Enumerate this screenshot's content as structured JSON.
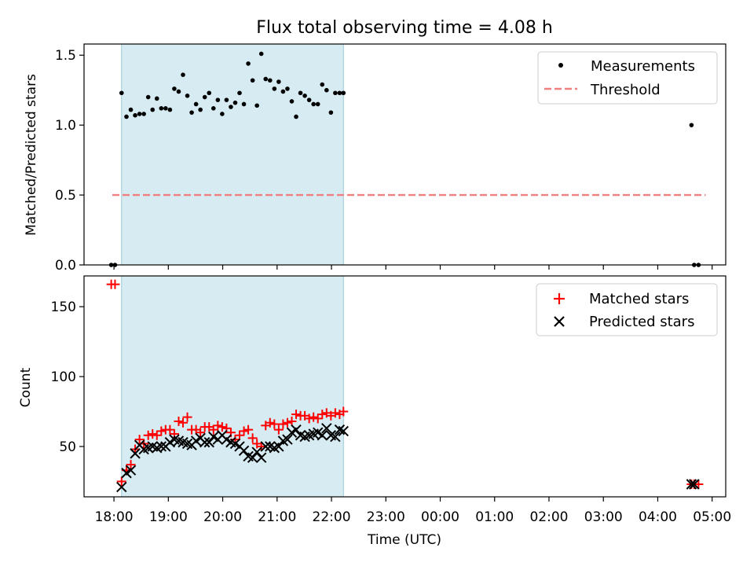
{
  "chart_data": [
    {
      "type": "scatter",
      "title": "Flux total observing time = 4.08 h",
      "ylabel": "Matched/Predicted stars",
      "xlabel": "",
      "x_unit": "hours since 18:00 UTC",
      "xlim": [
        -0.55,
        11.25
      ],
      "ylim": [
        0,
        1.58
      ],
      "yticks": [
        0.0,
        0.5,
        1.0,
        1.5
      ],
      "ytick_labels": [
        "0.0",
        "0.5",
        "1.0",
        "1.5"
      ],
      "xticks": [
        0,
        1,
        2,
        3,
        4,
        5,
        6,
        7,
        8,
        9,
        10,
        11
      ],
      "shaded_interval": [
        0.14,
        4.22
      ],
      "legend_position": "top-right",
      "legend": [
        "Measurements",
        "Threshold"
      ],
      "threshold": {
        "name": "Threshold",
        "y": 0.5,
        "x": [
          -0.03,
          10.88
        ],
        "color": "#f08080"
      },
      "measurements": {
        "name": "Measurements",
        "color": "#000000",
        "x": [
          -0.05,
          0.02,
          0.14,
          0.23,
          0.31,
          0.39,
          0.47,
          0.55,
          0.63,
          0.71,
          0.79,
          0.87,
          0.95,
          1.03,
          1.11,
          1.19,
          1.27,
          1.35,
          1.43,
          1.51,
          1.59,
          1.67,
          1.75,
          1.83,
          1.91,
          1.99,
          2.07,
          2.15,
          2.23,
          2.31,
          2.39,
          2.47,
          2.55,
          2.63,
          2.71,
          2.79,
          2.87,
          2.95,
          3.03,
          3.11,
          3.19,
          3.27,
          3.35,
          3.43,
          3.51,
          3.59,
          3.67,
          3.75,
          3.83,
          3.91,
          3.99,
          4.07,
          4.15,
          4.22,
          10.62,
          10.67,
          10.75
        ],
        "y": [
          0.0,
          0.0,
          1.23,
          1.06,
          1.11,
          1.07,
          1.08,
          1.08,
          1.2,
          1.11,
          1.19,
          1.12,
          1.12,
          1.11,
          1.26,
          1.24,
          1.36,
          1.21,
          1.09,
          1.15,
          1.11,
          1.2,
          1.23,
          1.12,
          1.18,
          1.08,
          1.18,
          1.13,
          1.16,
          1.23,
          1.15,
          1.44,
          1.32,
          1.14,
          1.51,
          1.33,
          1.32,
          1.26,
          1.31,
          1.24,
          1.26,
          1.17,
          1.06,
          1.23,
          1.21,
          1.18,
          1.15,
          1.15,
          1.29,
          1.25,
          1.09,
          1.23,
          1.23,
          1.23,
          1.0,
          0.0,
          0.0
        ]
      }
    },
    {
      "type": "scatter",
      "title": "",
      "ylabel": "Count",
      "xlabel": "Time (UTC)",
      "x_unit": "hours since 18:00 UTC",
      "xlim": [
        -0.55,
        11.25
      ],
      "ylim": [
        14,
        172
      ],
      "yticks": [
        50,
        100,
        150
      ],
      "ytick_labels": [
        "50",
        "100",
        "150"
      ],
      "xticks": [
        0,
        1,
        2,
        3,
        4,
        5,
        6,
        7,
        8,
        9,
        10,
        11
      ],
      "xtick_labels": [
        "18:00",
        "19:00",
        "20:00",
        "21:00",
        "22:00",
        "23:00",
        "00:00",
        "01:00",
        "02:00",
        "03:00",
        "04:00",
        "05:00"
      ],
      "shaded_interval": [
        0.14,
        4.22
      ],
      "legend_position": "top-right",
      "legend": [
        "Matched stars",
        "Predicted stars"
      ],
      "series": [
        {
          "name": "Matched stars",
          "marker": "plus",
          "color": "#ff0000",
          "x": [
            -0.05,
            0.02,
            0.14,
            0.23,
            0.31,
            0.39,
            0.47,
            0.55,
            0.63,
            0.71,
            0.79,
            0.87,
            0.95,
            1.03,
            1.11,
            1.19,
            1.27,
            1.35,
            1.43,
            1.51,
            1.59,
            1.67,
            1.75,
            1.83,
            1.91,
            1.99,
            2.07,
            2.15,
            2.23,
            2.31,
            2.39,
            2.47,
            2.55,
            2.63,
            2.71,
            2.79,
            2.87,
            2.95,
            3.03,
            3.11,
            3.19,
            3.27,
            3.35,
            3.43,
            3.51,
            3.59,
            3.67,
            3.75,
            3.83,
            3.91,
            3.99,
            4.07,
            4.15,
            4.22,
            10.62,
            10.67,
            10.75
          ],
          "y": [
            166,
            166,
            25,
            33,
            37,
            48,
            55,
            52,
            58,
            59,
            58,
            61,
            62,
            62,
            59,
            68,
            67,
            71,
            62,
            62,
            60,
            64,
            64,
            62,
            65,
            64,
            63,
            60,
            55,
            58,
            61,
            62,
            56,
            52,
            50,
            65,
            67,
            66,
            62,
            66,
            67,
            68,
            73,
            72,
            72,
            70,
            71,
            70,
            73,
            74,
            72,
            74,
            73,
            75,
            23,
            23,
            23
          ]
        },
        {
          "name": "Predicted stars",
          "marker": "x",
          "color": "#000000",
          "x": [
            0.14,
            0.23,
            0.31,
            0.39,
            0.47,
            0.55,
            0.63,
            0.71,
            0.79,
            0.87,
            0.95,
            1.03,
            1.11,
            1.19,
            1.27,
            1.35,
            1.43,
            1.51,
            1.59,
            1.67,
            1.75,
            1.83,
            1.91,
            1.99,
            2.07,
            2.15,
            2.23,
            2.31,
            2.39,
            2.47,
            2.55,
            2.63,
            2.71,
            2.79,
            2.87,
            2.95,
            3.03,
            3.11,
            3.19,
            3.27,
            3.35,
            3.43,
            3.51,
            3.59,
            3.67,
            3.75,
            3.83,
            3.91,
            3.99,
            4.07,
            4.15,
            4.22,
            10.62,
            10.67
          ],
          "y": [
            21,
            31,
            33,
            45,
            51,
            48,
            49,
            50,
            49,
            50,
            50,
            53,
            55,
            54,
            53,
            52,
            51,
            54,
            56,
            53,
            53,
            57,
            55,
            58,
            55,
            53,
            52,
            50,
            47,
            43,
            42,
            46,
            42,
            50,
            50,
            49,
            50,
            54,
            55,
            60,
            62,
            58,
            57,
            58,
            59,
            60,
            58,
            63,
            58,
            57,
            62,
            61,
            23,
            23
          ]
        }
      ]
    }
  ]
}
